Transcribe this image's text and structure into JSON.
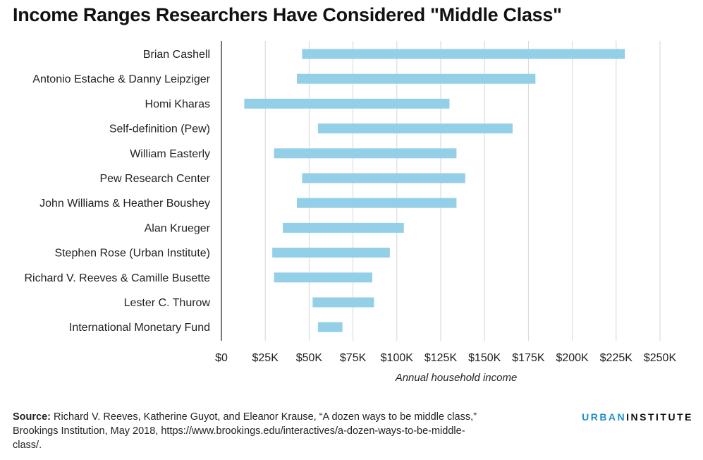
{
  "title": "Income Ranges Researchers Have Considered \"Middle Class\"",
  "chart_data": {
    "type": "bar",
    "orientation": "horizontal-range",
    "categories": [
      "Brian Cashell",
      "Antonio Estache & Danny Leipziger",
      "Homi Kharas",
      "Self-definition (Pew)",
      "William Easterly",
      "Pew Research Center",
      "John Williams & Heather Boushey",
      "Alan Krueger",
      "Stephen Rose (Urban Institute)",
      "Richard V. Reeves & Camille Busette",
      "Lester C. Thurow",
      "International Monetary Fund"
    ],
    "ranges": [
      [
        46000,
        230000
      ],
      [
        43000,
        179000
      ],
      [
        13000,
        130000
      ],
      [
        55000,
        166000
      ],
      [
        30000,
        134000
      ],
      [
        46000,
        139000
      ],
      [
        43000,
        134000
      ],
      [
        35000,
        104000
      ],
      [
        29000,
        96000
      ],
      [
        30000,
        86000
      ],
      [
        52000,
        87000
      ],
      [
        55000,
        69000
      ]
    ],
    "xlim": [
      0,
      250000
    ],
    "xticks": [
      0,
      25000,
      50000,
      75000,
      100000,
      125000,
      150000,
      175000,
      200000,
      225000,
      250000
    ],
    "xtick_labels": [
      "$0",
      "$25K",
      "$50K",
      "$75K",
      "$100K",
      "$125K",
      "$150K",
      "$175K",
      "$200K",
      "$225K",
      "$250K"
    ],
    "xlabel": "Annual household income",
    "ylabel": "",
    "grid": true,
    "bar_color": "#94cfe8"
  },
  "source": {
    "label": "Source:",
    "text": "Richard V. Reeves, Katherine Guyot, and Eleanor Krause, “A dozen ways to be middle class,” Brookings Institution, May 2018, https://www.brookings.edu/interactives/a-dozen-ways-to-be-middle-class/."
  },
  "brand": {
    "part1": "URBAN",
    "part2": "INSTITUTE",
    "color1": "#1f8fc9",
    "color2": "#111111"
  }
}
